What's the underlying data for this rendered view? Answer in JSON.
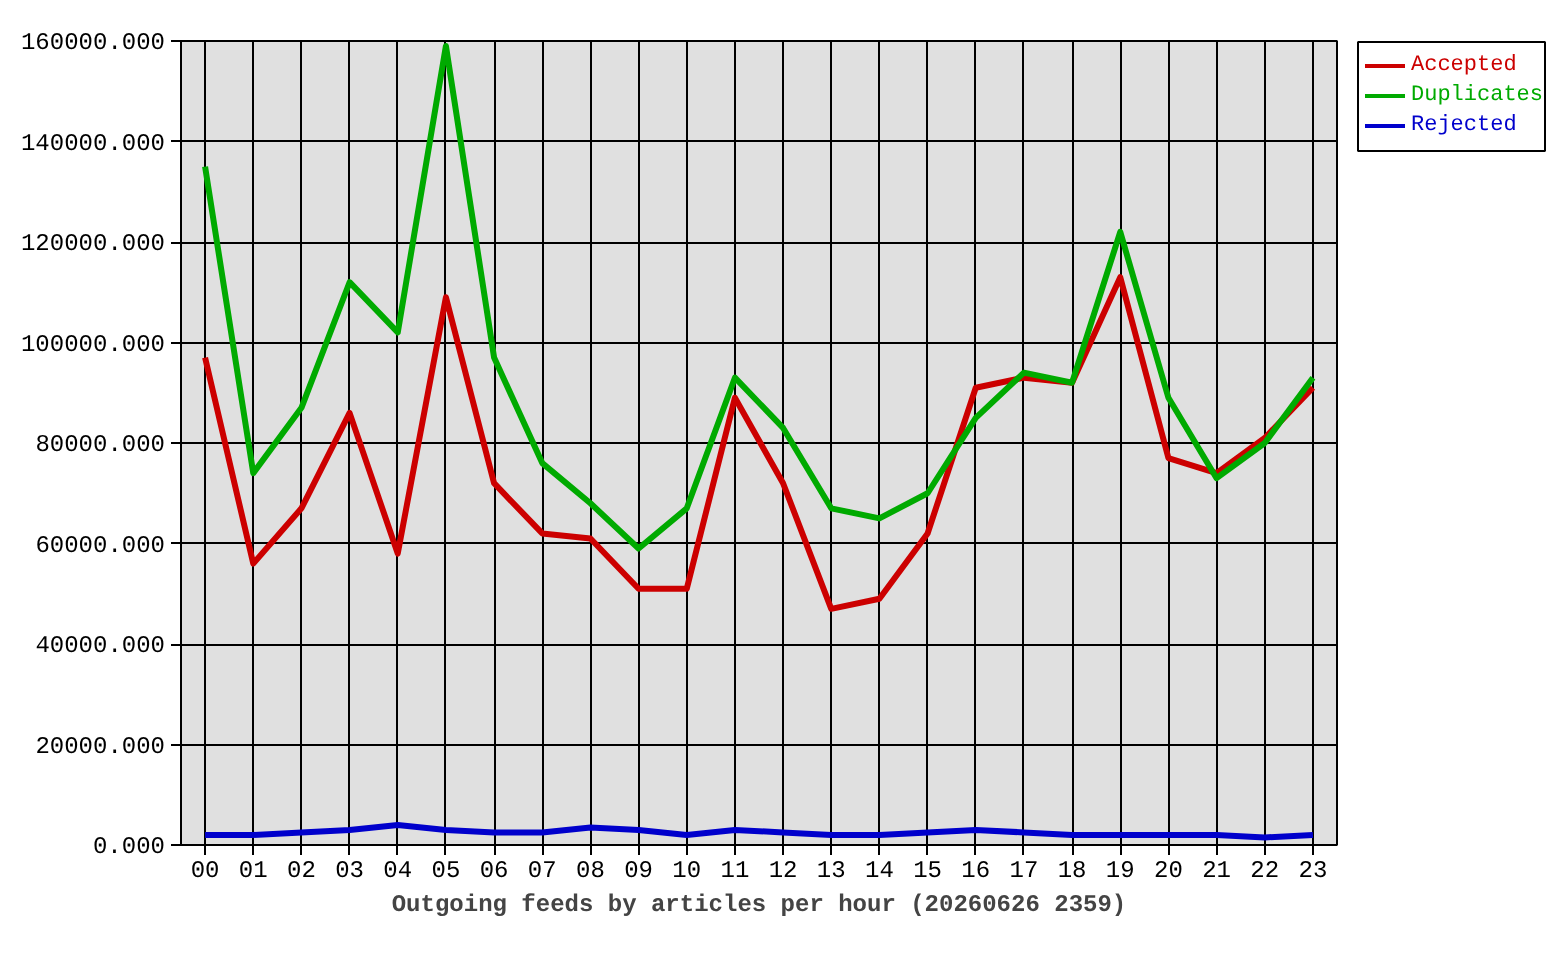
{
  "chart_data": {
    "type": "line",
    "xlabel": "Outgoing feeds by articles per hour (20260626 2359)",
    "categories": [
      "00",
      "01",
      "02",
      "03",
      "04",
      "05",
      "06",
      "07",
      "08",
      "09",
      "10",
      "11",
      "12",
      "13",
      "14",
      "15",
      "16",
      "17",
      "18",
      "19",
      "20",
      "21",
      "22",
      "23"
    ],
    "series": [
      {
        "name": "Accepted",
        "color": "#cc0000",
        "values": [
          97000,
          56000,
          67000,
          86000,
          58000,
          109000,
          72000,
          62000,
          61000,
          51000,
          51000,
          89000,
          72000,
          47000,
          49000,
          62000,
          91000,
          93000,
          92000,
          113000,
          77000,
          74000,
          81000,
          91000
        ]
      },
      {
        "name": "Duplicates",
        "color": "#00aa00",
        "values": [
          135000,
          74000,
          87000,
          112000,
          102000,
          159000,
          97000,
          76000,
          68000,
          59000,
          67000,
          93000,
          83000,
          67000,
          65000,
          70000,
          85000,
          94000,
          92000,
          122000,
          89000,
          73000,
          80000,
          93000
        ]
      },
      {
        "name": "Rejected",
        "color": "#0000cc",
        "values": [
          2000,
          2000,
          2500,
          3000,
          4000,
          3000,
          2500,
          2500,
          3500,
          3000,
          2000,
          3000,
          2500,
          2000,
          2000,
          2500,
          3000,
          2500,
          2000,
          2000,
          2000,
          2000,
          1500,
          2000
        ]
      }
    ],
    "ylim": [
      0,
      160000
    ],
    "yticks": [
      {
        "value": 0,
        "label": "0.000"
      },
      {
        "value": 20000,
        "label": "20000.000"
      },
      {
        "value": 40000,
        "label": "40000.000"
      },
      {
        "value": 60000,
        "label": "60000.000"
      },
      {
        "value": 80000,
        "label": "80000.000"
      },
      {
        "value": 100000,
        "label": "100000.000"
      },
      {
        "value": 120000,
        "label": "120000.000"
      },
      {
        "value": 140000,
        "label": "140000.000"
      },
      {
        "value": 160000,
        "label": "160000.000"
      }
    ],
    "grid": true,
    "legend": "top right",
    "marker": "none",
    "line_style": "solid"
  }
}
